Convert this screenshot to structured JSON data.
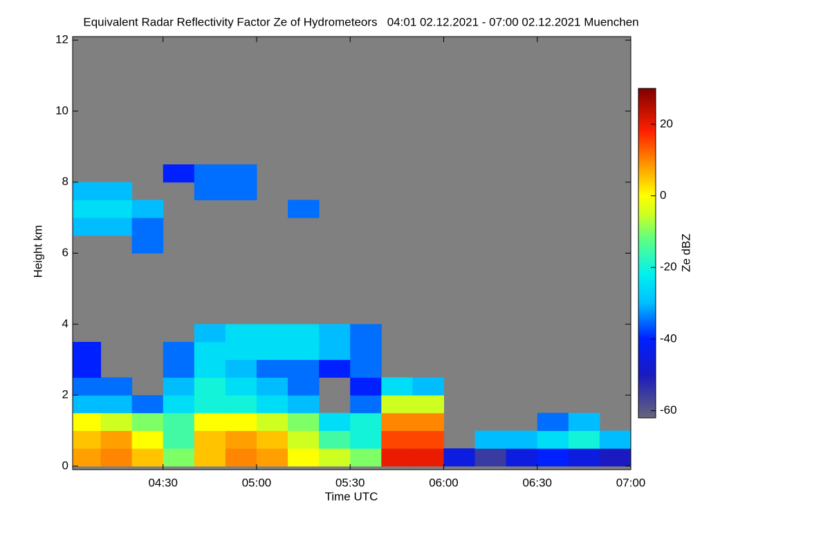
{
  "chart_data": {
    "type": "heatmap",
    "title": "Equivalent Radar Reflectivity Factor Ze of Hydrometeors   04:01 02.12.2021 - 07:00 02.12.2021 Muenchen",
    "x_label": "Time UTC",
    "y_label": "Height km",
    "colorbar_label": "Ze dBZ",
    "xlim": [
      241,
      420
    ],
    "xticks": [
      {
        "value": 270,
        "label": "04:30"
      },
      {
        "value": 300,
        "label": "05:00"
      },
      {
        "value": 330,
        "label": "05:30"
      },
      {
        "value": 360,
        "label": "06:00"
      },
      {
        "value": 390,
        "label": "06:30"
      },
      {
        "value": 420,
        "label": "07:00"
      }
    ],
    "ylim": [
      -0.1,
      12.1
    ],
    "yticks": [
      0,
      2,
      4,
      6,
      8,
      10,
      12
    ],
    "zlim": [
      -62,
      30
    ],
    "zticks": [
      -60,
      -40,
      -20,
      0,
      20
    ],
    "x": [
      245,
      255,
      265,
      275,
      285,
      295,
      305,
      315,
      325,
      335,
      345,
      355,
      365,
      375,
      385,
      395,
      405,
      415
    ],
    "y": [
      0.25,
      0.75,
      1.25,
      1.75,
      2.25,
      2.75,
      3.25,
      3.75,
      4.25,
      4.75,
      5.25,
      5.75,
      6.25,
      6.75,
      7.25,
      7.75,
      8.25
    ],
    "z": [
      [
        8,
        10,
        5,
        -10,
        5,
        10,
        8,
        0,
        -5,
        -10,
        20,
        20,
        -45,
        -55,
        -45,
        -40,
        -45,
        -50
      ],
      [
        5,
        8,
        0,
        -15,
        5,
        8,
        5,
        -5,
        -15,
        -20,
        15,
        15,
        null,
        -30,
        -30,
        -25,
        -20,
        -30
      ],
      [
        0,
        -5,
        -10,
        -15,
        0,
        0,
        -5,
        -10,
        -25,
        -20,
        10,
        10,
        null,
        null,
        null,
        -35,
        -30,
        null
      ],
      [
        -30,
        -30,
        -35,
        -25,
        -20,
        -20,
        -25,
        -30,
        null,
        -35,
        -5,
        -5,
        null,
        null,
        null,
        null,
        null,
        null
      ],
      [
        -35,
        -35,
        null,
        -30,
        -20,
        -25,
        -30,
        -35,
        null,
        -40,
        -25,
        -30,
        null,
        null,
        null,
        null,
        null,
        null
      ],
      [
        -40,
        null,
        null,
        -35,
        -25,
        -30,
        -35,
        -35,
        -40,
        -35,
        null,
        null,
        null,
        null,
        null,
        null,
        null,
        null
      ],
      [
        -40,
        null,
        null,
        -35,
        -25,
        -25,
        -25,
        -25,
        -30,
        -35,
        null,
        null,
        null,
        null,
        null,
        null,
        null,
        null
      ],
      [
        null,
        null,
        null,
        null,
        -30,
        -25,
        -25,
        -25,
        -30,
        -35,
        null,
        null,
        null,
        null,
        null,
        null,
        null,
        null
      ],
      [
        null,
        null,
        null,
        null,
        null,
        null,
        null,
        null,
        null,
        null,
        null,
        null,
        null,
        null,
        null,
        null,
        null,
        null
      ],
      [
        null,
        null,
        null,
        null,
        null,
        null,
        null,
        null,
        null,
        null,
        null,
        null,
        null,
        null,
        null,
        null,
        null,
        null
      ],
      [
        null,
        null,
        null,
        null,
        null,
        null,
        null,
        null,
        null,
        null,
        null,
        null,
        null,
        null,
        null,
        null,
        null,
        null
      ],
      [
        null,
        null,
        null,
        null,
        null,
        null,
        null,
        null,
        null,
        null,
        null,
        null,
        null,
        null,
        null,
        null,
        null,
        null
      ],
      [
        null,
        null,
        -35,
        null,
        null,
        null,
        null,
        null,
        null,
        null,
        null,
        null,
        null,
        null,
        null,
        null,
        null,
        null
      ],
      [
        -30,
        -30,
        -35,
        null,
        null,
        null,
        null,
        null,
        null,
        null,
        null,
        null,
        null,
        null,
        null,
        null,
        null,
        null
      ],
      [
        -25,
        -25,
        -30,
        null,
        null,
        null,
        null,
        -35,
        null,
        null,
        null,
        null,
        null,
        null,
        null,
        null,
        null,
        null
      ],
      [
        -30,
        -30,
        null,
        null,
        -35,
        -35,
        null,
        null,
        null,
        null,
        null,
        null,
        null,
        null,
        null,
        null,
        null,
        null
      ],
      [
        null,
        null,
        null,
        -40,
        -35,
        -35,
        null,
        null,
        null,
        null,
        null,
        null,
        null,
        null,
        null,
        null,
        null,
        null
      ]
    ]
  }
}
